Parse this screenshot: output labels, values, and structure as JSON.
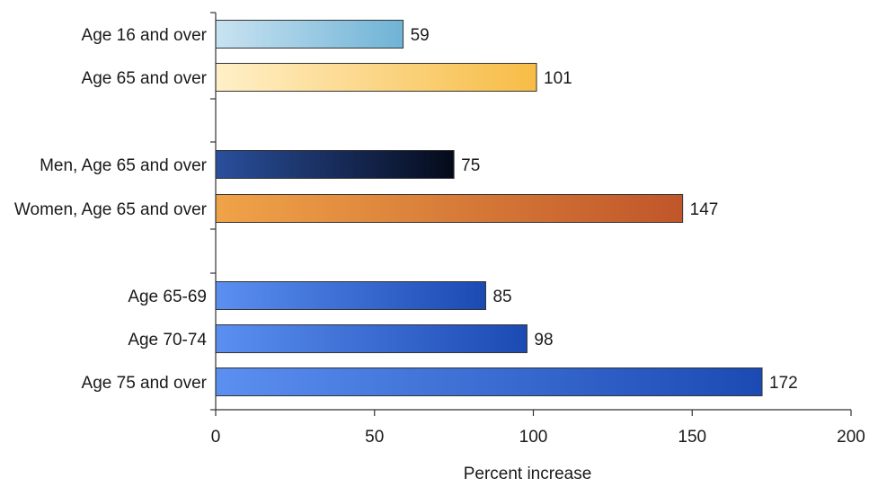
{
  "chart_data": {
    "type": "bar",
    "orientation": "horizontal",
    "title": "",
    "xlabel": "Percent increase",
    "ylabel": "",
    "xlim": [
      0,
      200
    ],
    "xticks": [
      0,
      50,
      100,
      150,
      200
    ],
    "grid": false,
    "legend": "none",
    "groups": [
      {
        "bars": [
          {
            "category": "Age 16 and over",
            "value": 59,
            "colors": [
              "#c8e3f1",
              "#6fb3d6"
            ]
          },
          {
            "category": "Age 65 and over",
            "value": 101,
            "colors": [
              "#fff0c8",
              "#f7bc45"
            ]
          }
        ]
      },
      {
        "bars": [
          {
            "category": "Men, Age 65 and over",
            "value": 75,
            "colors": [
              "#2a4f9c",
              "#050a1a"
            ]
          },
          {
            "category": "Women, Age 65 and over",
            "value": 147,
            "colors": [
              "#f0a348",
              "#c0562a"
            ]
          }
        ]
      },
      {
        "bars": [
          {
            "category": "Age 65-69",
            "value": 85,
            "colors": [
              "#5b8ff0",
              "#1b4ab3"
            ]
          },
          {
            "category": "Age 70-74",
            "value": 98,
            "colors": [
              "#5b8ff0",
              "#1b4ab3"
            ]
          },
          {
            "category": "Age 75 and over",
            "value": 172,
            "colors": [
              "#5b8ff0",
              "#1b4ab3"
            ]
          }
        ]
      }
    ]
  }
}
